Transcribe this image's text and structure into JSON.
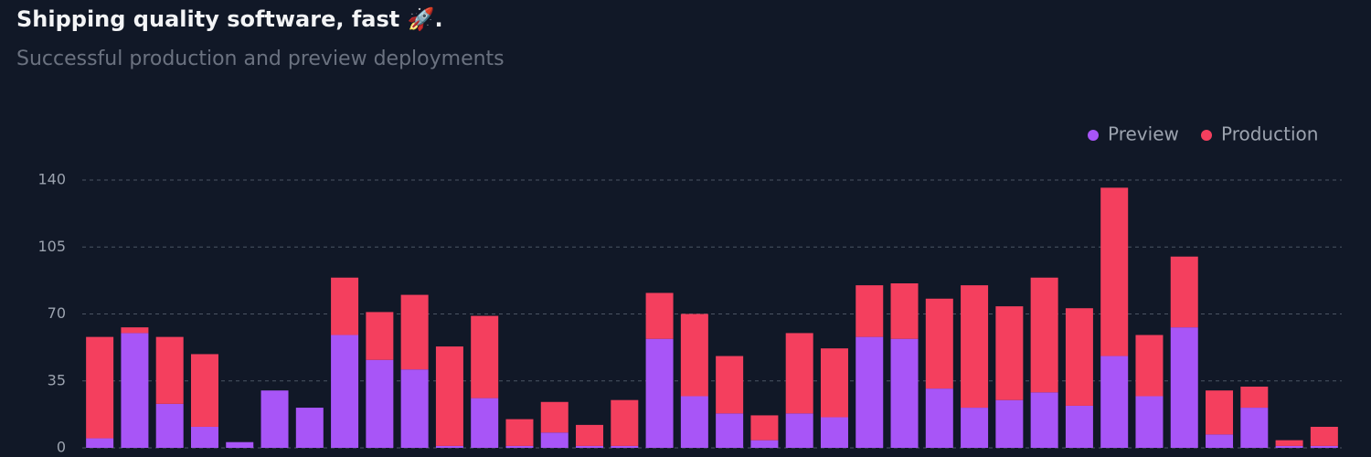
{
  "chart_data": {
    "type": "stacked_bar",
    "title": "Shipping quality software, fast 🚀.",
    "subtitle": "Successful production and preview deployments",
    "series": [
      {
        "name": "Preview",
        "color": "#a855f7",
        "values": [
          5,
          60,
          23,
          11,
          3,
          30,
          21,
          59,
          46,
          41,
          1,
          26,
          1,
          8,
          1,
          1,
          57,
          27,
          18,
          4,
          18,
          16,
          58,
          57,
          31,
          21,
          25,
          29,
          22,
          48,
          27,
          63,
          7,
          21,
          1,
          1
        ]
      },
      {
        "name": "Production",
        "color": "#f43f5e",
        "values": [
          53,
          3,
          35,
          38,
          0,
          0,
          0,
          30,
          25,
          39,
          52,
          43,
          14,
          16,
          11,
          24,
          24,
          43,
          30,
          13,
          42,
          36,
          27,
          29,
          47,
          64,
          49,
          60,
          51,
          88,
          32,
          37,
          23,
          11,
          3,
          10
        ]
      }
    ],
    "ylim": [
      0,
      140
    ],
    "yticks": [
      0,
      35,
      70,
      105,
      140
    ],
    "grid": true,
    "legend": "top-right"
  }
}
